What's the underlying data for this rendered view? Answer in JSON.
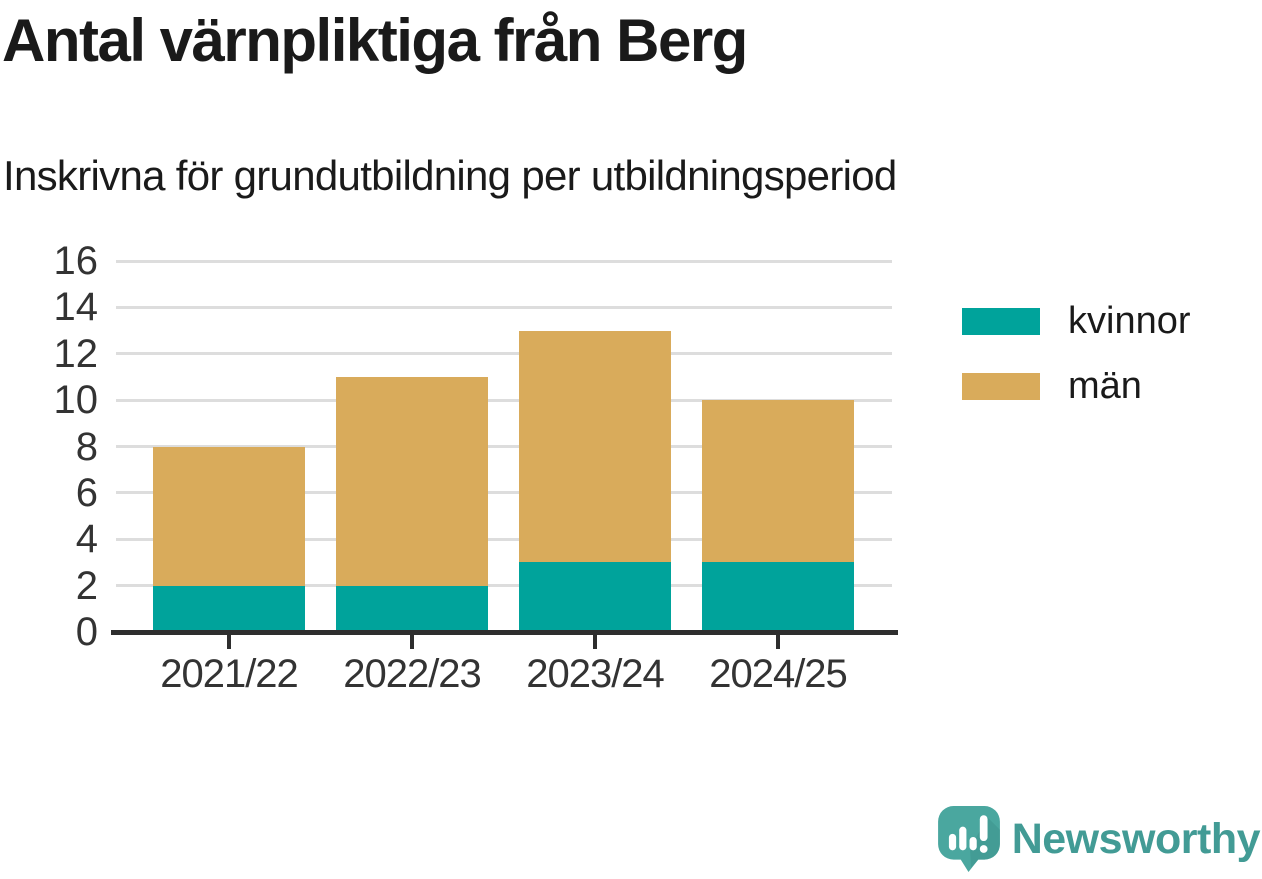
{
  "header": {
    "title": "Antal värnpliktiga från Berg",
    "subtitle": "Inskrivna för grundutbildning per utbildningsperiod"
  },
  "chart_data": {
    "type": "bar",
    "stacked": true,
    "title": "Antal värnpliktiga från Berg",
    "subtitle": "Inskrivna för grundutbildning per utbildningsperiod",
    "categories": [
      "2021/22",
      "2022/23",
      "2023/24",
      "2024/25"
    ],
    "series": [
      {
        "name": "kvinnor",
        "color": "#00A39B",
        "values": [
          2,
          2,
          3,
          3
        ]
      },
      {
        "name": "män",
        "color": "#D9AB5B",
        "values": [
          6,
          9,
          10,
          7
        ]
      }
    ],
    "totals": [
      8,
      11,
      13,
      10
    ],
    "xlabel": "",
    "ylabel": "",
    "ylim": [
      0,
      16
    ],
    "yticks": [
      0,
      2,
      4,
      6,
      8,
      10,
      12,
      14,
      16
    ],
    "grid": true,
    "legend_position": "right"
  },
  "footer": {
    "brand": "Newsworthy",
    "brand_color": "#429B95",
    "logo_bubble_color": "#4AA79F",
    "logo_bubble_shade": "#3E948D"
  },
  "style_colors": {
    "gridline": "#dddddd",
    "axis_line": "#2e2e2e",
    "axis_text": "#333333",
    "heading_text": "#1a1a1a"
  }
}
